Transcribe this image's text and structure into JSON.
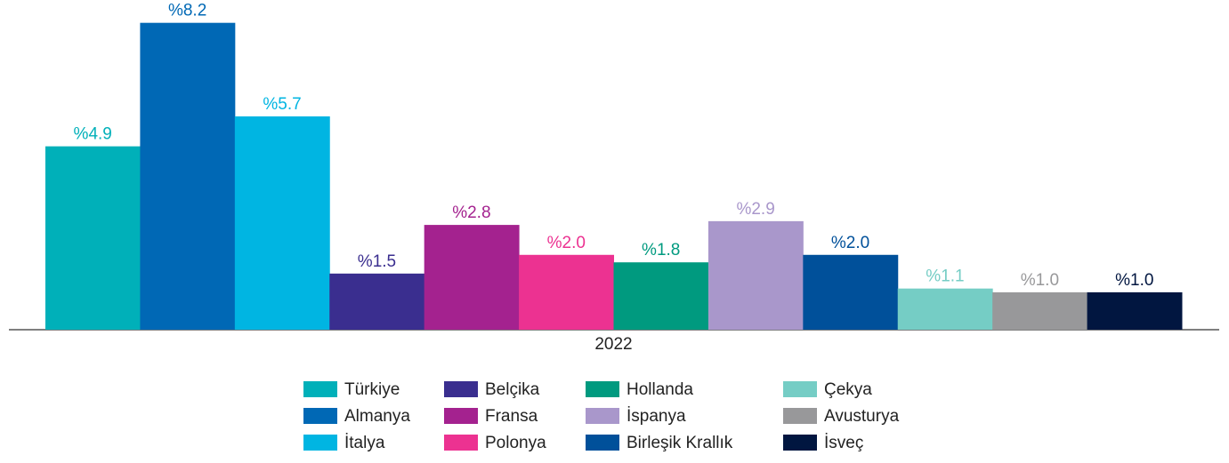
{
  "chart_data": {
    "type": "bar",
    "categories": [
      "2022"
    ],
    "ylim": [
      0,
      9
    ],
    "legend": "bottom",
    "series": [
      {
        "name": "Türkiye",
        "color": "#00b0b9",
        "values": [
          4.9
        ],
        "value_labels": [
          "%4.9"
        ]
      },
      {
        "name": "Almanya",
        "color": "#0068b5",
        "values": [
          8.2
        ],
        "value_labels": [
          "%8.2"
        ]
      },
      {
        "name": "İtalya",
        "color": "#00b5e2",
        "values": [
          5.7
        ],
        "value_labels": [
          "%5.7"
        ]
      },
      {
        "name": "Belçika",
        "color": "#3a2e8f",
        "values": [
          1.5
        ],
        "value_labels": [
          "%1.5"
        ]
      },
      {
        "name": "Fransa",
        "color": "#a4228f",
        "values": [
          2.8
        ],
        "value_labels": [
          "%2.8"
        ]
      },
      {
        "name": "Polonya",
        "color": "#ec3291",
        "values": [
          2.0
        ],
        "value_labels": [
          "%2.0"
        ]
      },
      {
        "name": "Hollanda",
        "color": "#009a7f",
        "values": [
          1.8
        ],
        "value_labels": [
          "%1.8"
        ]
      },
      {
        "name": "İspanya",
        "color": "#a997cb",
        "values": [
          2.9
        ],
        "value_labels": [
          "%2.9"
        ]
      },
      {
        "name": "Birleşik Krallık",
        "color": "#00509a",
        "values": [
          2.0
        ],
        "value_labels": [
          "%2.0"
        ]
      },
      {
        "name": "Çekya",
        "color": "#75cdc5",
        "values": [
          1.1
        ],
        "value_labels": [
          "%1.1"
        ]
      },
      {
        "name": "Avusturya",
        "color": "#98989a",
        "values": [
          1.0
        ],
        "value_labels": [
          "%1.0"
        ]
      },
      {
        "name": "İsveç",
        "color": "#011640",
        "values": [
          1.0
        ],
        "value_labels": [
          "%1.0"
        ]
      }
    ]
  }
}
